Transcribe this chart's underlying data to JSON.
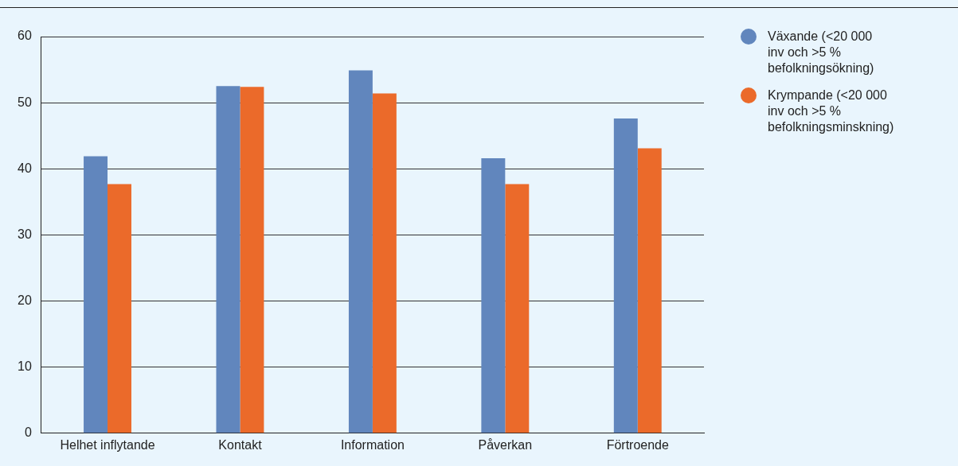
{
  "chart_data": {
    "type": "bar",
    "categories": [
      "Helhet inflytande",
      "Kontakt",
      "Information",
      "Påverkan",
      "Förtroende"
    ],
    "series": [
      {
        "name": "Växande (<20 000 inv och >5 % befolkningsökning)",
        "color": "#6186bd",
        "values": [
          41.9,
          52.5,
          54.9,
          41.6,
          47.6
        ]
      },
      {
        "name": "Krympande (<20 000 inv och >5 % befolkningsminskning)",
        "color": "#eb6a2a",
        "values": [
          37.7,
          52.4,
          51.4,
          37.7,
          43.1
        ]
      }
    ],
    "ylim": [
      0,
      60
    ],
    "yticks": [
      0,
      10,
      20,
      30,
      40,
      50,
      60
    ],
    "grid": "y",
    "legend": "right"
  }
}
